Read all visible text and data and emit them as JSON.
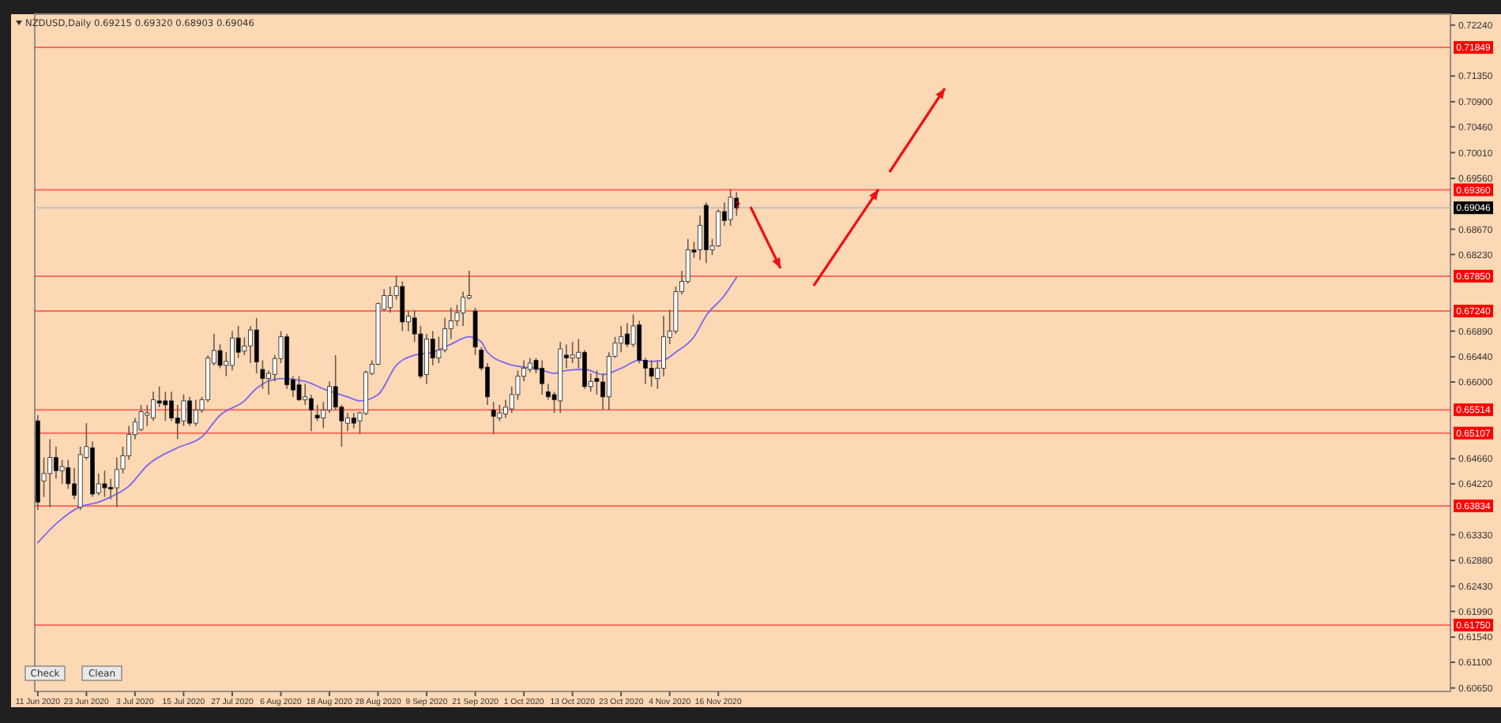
{
  "chart_data": {
    "type": "candlestick",
    "title": "NZDUSD,Daily  0.69215 0.69320 0.68903 0.69046",
    "categories": [
      "11 Jun 2020",
      null,
      null,
      null,
      null,
      null,
      null,
      null,
      "23 Jun 2020",
      null,
      null,
      null,
      null,
      null,
      null,
      null,
      "3 Jul 2020",
      null,
      null,
      null,
      null,
      null,
      null,
      null,
      "15 Jul 2020",
      null,
      null,
      null,
      null,
      null,
      null,
      null,
      "27 Jul 2020",
      null,
      null,
      null,
      null,
      null,
      null,
      null,
      "6 Aug 2020",
      null,
      null,
      null,
      null,
      null,
      null,
      null,
      "18 Aug 2020",
      null,
      null,
      null,
      null,
      null,
      null,
      null,
      "28 Aug 2020",
      null,
      null,
      null,
      null,
      null,
      null,
      null,
      "9 Sep 2020",
      null,
      null,
      null,
      null,
      null,
      null,
      null,
      "21 Sep 2020",
      null,
      null,
      null,
      null,
      null,
      null,
      null,
      "1 Oct 2020",
      null,
      null,
      null,
      null,
      null,
      null,
      null,
      "13 Oct 2020",
      null,
      null,
      null,
      null,
      null,
      null,
      null,
      "23 Oct 2020",
      null,
      null,
      null,
      null,
      null,
      null,
      null,
      "4 Nov 2020",
      null,
      null,
      null,
      null,
      null,
      null,
      null,
      "16 Nov 2020",
      null,
      null,
      null,
      null,
      null,
      null,
      null,
      null,
      null,
      null,
      null,
      null,
      null,
      null,
      null,
      null,
      null,
      null,
      null,
      null,
      null,
      null,
      null,
      null,
      null,
      null,
      null,
      null,
      null,
      null,
      null,
      null,
      null,
      null,
      null,
      null,
      null,
      null,
      null,
      null,
      null,
      null,
      null,
      null,
      null,
      null,
      null,
      null,
      null,
      null,
      null,
      null,
      null,
      null,
      null,
      null,
      null,
      null,
      null,
      null,
      null,
      null,
      null,
      null,
      null,
      null,
      null,
      null,
      null,
      null,
      null,
      null,
      null,
      null,
      null,
      null,
      null,
      null,
      null,
      null,
      null,
      null,
      null,
      null,
      null,
      null,
      null,
      null,
      null,
      null,
      null,
      null,
      null,
      null,
      null,
      null,
      null,
      null,
      null,
      null,
      null,
      null,
      null,
      null,
      null,
      null,
      null,
      null,
      null,
      null,
      null,
      null,
      null,
      null,
      null,
      null,
      null,
      null,
      null,
      null
    ],
    "ohlc": [
      [
        0.6532,
        0.6542,
        0.6376,
        0.639
      ],
      [
        0.6427,
        0.6468,
        0.6399,
        0.644
      ],
      [
        0.644,
        0.65,
        0.6381,
        0.6468
      ],
      [
        0.6468,
        0.6487,
        0.6431,
        0.6445
      ],
      [
        0.6445,
        0.6464,
        0.6422,
        0.6452
      ],
      [
        0.645,
        0.6464,
        0.6413,
        0.6422
      ],
      [
        0.6422,
        0.645,
        0.6395,
        0.6402
      ],
      [
        0.6381,
        0.6487,
        0.6376,
        0.6473
      ],
      [
        0.6468,
        0.6528,
        0.6464,
        0.6487
      ],
      [
        0.6485,
        0.6496,
        0.6399,
        0.6404
      ],
      [
        0.6406,
        0.644,
        0.6402,
        0.6422
      ],
      [
        0.6422,
        0.6445,
        0.6399,
        0.6415
      ],
      [
        0.6416,
        0.6431,
        0.6395,
        0.6413
      ],
      [
        0.6415,
        0.6468,
        0.6381,
        0.6447
      ],
      [
        0.6448,
        0.6487,
        0.644,
        0.6471
      ],
      [
        0.6471,
        0.6523,
        0.6464,
        0.6508
      ],
      [
        0.6508,
        0.6537,
        0.65,
        0.653
      ],
      [
        0.6517,
        0.656,
        0.6514,
        0.6548
      ],
      [
        0.6542,
        0.656,
        0.6523,
        0.6546
      ],
      [
        0.6537,
        0.6583,
        0.6532,
        0.6569
      ],
      [
        0.6567,
        0.6592,
        0.6556,
        0.6563
      ],
      [
        0.6567,
        0.6583,
        0.6532,
        0.656
      ],
      [
        0.6567,
        0.6583,
        0.6532,
        0.6537
      ],
      [
        0.6537,
        0.656,
        0.65,
        0.6528
      ],
      [
        0.6532,
        0.6578,
        0.6523,
        0.6567
      ],
      [
        0.6567,
        0.6574,
        0.6523,
        0.6528
      ],
      [
        0.6528,
        0.6569,
        0.6523,
        0.6551
      ],
      [
        0.6551,
        0.6574,
        0.6546,
        0.6569
      ],
      [
        0.6569,
        0.6647,
        0.6565,
        0.6642
      ],
      [
        0.6633,
        0.6684,
        0.6629,
        0.6655
      ],
      [
        0.6655,
        0.6666,
        0.6624,
        0.6629
      ],
      [
        0.6629,
        0.6652,
        0.661,
        0.6636
      ],
      [
        0.6629,
        0.6689,
        0.662,
        0.6677
      ],
      [
        0.6677,
        0.6698,
        0.6642,
        0.6652
      ],
      [
        0.6654,
        0.6678,
        0.6647,
        0.6663
      ],
      [
        0.6663,
        0.6698,
        0.6633,
        0.6691
      ],
      [
        0.6691,
        0.6712,
        0.6615,
        0.6635
      ],
      [
        0.6622,
        0.6638,
        0.6588,
        0.6606
      ],
      [
        0.6606,
        0.662,
        0.6578,
        0.6615
      ],
      [
        0.6613,
        0.6647,
        0.6601,
        0.6641
      ],
      [
        0.6641,
        0.6689,
        0.6633,
        0.6679
      ],
      [
        0.6679,
        0.6684,
        0.6588,
        0.6595
      ],
      [
        0.6604,
        0.661,
        0.6574,
        0.6586
      ],
      [
        0.6595,
        0.661,
        0.6567,
        0.6569
      ],
      [
        0.6569,
        0.6597,
        0.656,
        0.6574
      ],
      [
        0.6571,
        0.6578,
        0.6514,
        0.6551
      ],
      [
        0.6542,
        0.656,
        0.6532,
        0.6537
      ],
      [
        0.6537,
        0.6565,
        0.6519,
        0.6551
      ],
      [
        0.6551,
        0.6601,
        0.6546,
        0.6592
      ],
      [
        0.6592,
        0.6647,
        0.6551,
        0.6556
      ],
      [
        0.6556,
        0.656,
        0.6487,
        0.6532
      ],
      [
        0.6528,
        0.6546,
        0.6514,
        0.6537
      ],
      [
        0.6537,
        0.6546,
        0.6519,
        0.6528
      ],
      [
        0.6532,
        0.6548,
        0.6509,
        0.6546
      ],
      [
        0.6545,
        0.662,
        0.6542,
        0.6617
      ],
      [
        0.6615,
        0.6638,
        0.6612,
        0.6631
      ],
      [
        0.6631,
        0.6739,
        0.6629,
        0.6737
      ],
      [
        0.6727,
        0.6762,
        0.6724,
        0.6751
      ],
      [
        0.673,
        0.6767,
        0.6721,
        0.6751
      ],
      [
        0.6751,
        0.6785,
        0.6744,
        0.6767
      ],
      [
        0.6767,
        0.6776,
        0.6689,
        0.6705
      ],
      [
        0.6705,
        0.6724,
        0.6689,
        0.6715
      ],
      [
        0.6712,
        0.6726,
        0.667,
        0.6684
      ],
      [
        0.6684,
        0.6698,
        0.6606,
        0.661
      ],
      [
        0.6613,
        0.6684,
        0.6597,
        0.6675
      ],
      [
        0.6675,
        0.6689,
        0.6629,
        0.6642
      ],
      [
        0.6642,
        0.6679,
        0.6633,
        0.6656
      ],
      [
        0.6656,
        0.6712,
        0.6652,
        0.6693
      ],
      [
        0.6693,
        0.673,
        0.6675,
        0.6707
      ],
      [
        0.6707,
        0.6735,
        0.6698,
        0.6721
      ],
      [
        0.6721,
        0.6758,
        0.6698,
        0.6748
      ],
      [
        0.6747,
        0.6794,
        0.6744,
        0.6751
      ],
      [
        0.6724,
        0.673,
        0.6647,
        0.6661
      ],
      [
        0.6656,
        0.6661,
        0.662,
        0.6624
      ],
      [
        0.6626,
        0.6633,
        0.656,
        0.6574
      ],
      [
        0.6551,
        0.6565,
        0.6509,
        0.654
      ],
      [
        0.6537,
        0.656,
        0.6532,
        0.6546
      ],
      [
        0.6544,
        0.6569,
        0.6537,
        0.6556
      ],
      [
        0.6553,
        0.6592,
        0.6546,
        0.6578
      ],
      [
        0.6578,
        0.662,
        0.6569,
        0.661
      ],
      [
        0.661,
        0.6638,
        0.6601,
        0.6624
      ],
      [
        0.6622,
        0.6642,
        0.6617,
        0.6633
      ],
      [
        0.6638,
        0.6642,
        0.6615,
        0.6622
      ],
      [
        0.6624,
        0.6638,
        0.6578,
        0.6597
      ],
      [
        0.6583,
        0.6597,
        0.6569,
        0.6574
      ],
      [
        0.6578,
        0.6583,
        0.6546,
        0.6569
      ],
      [
        0.6567,
        0.667,
        0.6546,
        0.6658
      ],
      [
        0.6647,
        0.6666,
        0.6624,
        0.6642
      ],
      [
        0.6642,
        0.667,
        0.6633,
        0.6647
      ],
      [
        0.6642,
        0.6675,
        0.6624,
        0.6652
      ],
      [
        0.6652,
        0.6656,
        0.6588,
        0.6592
      ],
      [
        0.6592,
        0.6615,
        0.6583,
        0.6601
      ],
      [
        0.6606,
        0.662,
        0.6578,
        0.6601
      ],
      [
        0.66,
        0.6615,
        0.6551,
        0.6574
      ],
      [
        0.6574,
        0.6652,
        0.6551,
        0.6645
      ],
      [
        0.6645,
        0.6679,
        0.6642,
        0.6668
      ],
      [
        0.6668,
        0.6698,
        0.6652,
        0.6679
      ],
      [
        0.6684,
        0.6703,
        0.6661,
        0.6666
      ],
      [
        0.6666,
        0.6718,
        0.6661,
        0.6698
      ],
      [
        0.67,
        0.6707,
        0.6633,
        0.6638
      ],
      [
        0.6638,
        0.6642,
        0.6597,
        0.6624
      ],
      [
        0.6624,
        0.6638,
        0.6592,
        0.661
      ],
      [
        0.6606,
        0.6638,
        0.6588,
        0.6624
      ],
      [
        0.6624,
        0.6716,
        0.661,
        0.6679
      ],
      [
        0.6678,
        0.6726,
        0.6666,
        0.6689
      ],
      [
        0.6689,
        0.6767,
        0.6684,
        0.6758
      ],
      [
        0.6758,
        0.6794,
        0.6753,
        0.6776
      ],
      [
        0.6776,
        0.685,
        0.6772,
        0.6831
      ],
      [
        0.6831,
        0.6845,
        0.6817,
        0.6827
      ],
      [
        0.6831,
        0.6891,
        0.6813,
        0.6874
      ],
      [
        0.6909,
        0.6914,
        0.6808,
        0.6831
      ],
      [
        0.6831,
        0.685,
        0.6822,
        0.6838
      ],
      [
        0.6838,
        0.6902,
        0.6836,
        0.6898
      ],
      [
        0.6898,
        0.6914,
        0.6873,
        0.6882
      ],
      [
        0.6884,
        0.6937,
        0.6873,
        0.6923
      ],
      [
        0.69215,
        0.6932,
        0.68903,
        0.69046
      ],
      null,
      null,
      null,
      null,
      null,
      null,
      null,
      null,
      null,
      null,
      null,
      null,
      null,
      null,
      null,
      null,
      null,
      null,
      null,
      null,
      null,
      null,
      null,
      null,
      null,
      null,
      null,
      null,
      null,
      null,
      null,
      null,
      null,
      null,
      null,
      null,
      null,
      null,
      null,
      null,
      null,
      null,
      null,
      null,
      null,
      null,
      null,
      null,
      null,
      null,
      null,
      null,
      null,
      null,
      null,
      null,
      null,
      null,
      null,
      null,
      null,
      null,
      null,
      null,
      null,
      null,
      null,
      null,
      null,
      null,
      null,
      null,
      null,
      null,
      null,
      null,
      null,
      null,
      null,
      null,
      null,
      null,
      null,
      null,
      null,
      null,
      null,
      null,
      null,
      null,
      null,
      null,
      null,
      null,
      null,
      null,
      null,
      null,
      null,
      null,
      null,
      null,
      null,
      null,
      null,
      null,
      null,
      null,
      null,
      null,
      null,
      null,
      null,
      null,
      null,
      null,
      null
    ],
    "series": [
      {
        "type": "line",
        "color": "#7b68ee",
        "values": [
          0.6319,
          null,
          null,
          0.6352,
          null,
          null,
          null,
          0.6382,
          null,
          null,
          0.639,
          null,
          0.6399,
          null,
          null,
          0.6418,
          null,
          null,
          0.6454,
          null,
          null,
          null,
          null,
          0.6485,
          null,
          null,
          null,
          0.6504,
          null,
          null,
          0.6542,
          null,
          null,
          null,
          0.6567,
          null,
          0.6589,
          null,
          null,
          null,
          0.6606,
          null,
          null,
          null,
          0.6601,
          null,
          null,
          0.6588,
          null,
          null,
          null,
          0.6574,
          null,
          0.6567,
          null,
          null,
          0.6578,
          null,
          null,
          0.6629,
          null,
          null,
          0.6647,
          null,
          null,
          0.6652,
          null,
          null,
          0.6666,
          null,
          null,
          0.6679,
          null,
          0.667,
          0.6652,
          null,
          null,
          0.6633,
          null,
          null,
          0.6626,
          null,
          0.6624,
          null,
          null,
          0.6615,
          null,
          0.662,
          null,
          null,
          0.6622,
          null,
          null,
          0.6613,
          null,
          null,
          0.6624,
          null,
          null,
          0.6638,
          null,
          0.6636,
          null,
          0.6638,
          null,
          0.6652,
          null,
          null,
          0.6679,
          null,
          0.6716,
          null,
          null,
          0.6751,
          null,
          0.6783,
          null,
          null,
          null,
          null,
          null,
          null,
          null,
          null,
          null,
          null,
          null,
          null,
          null,
          null,
          null,
          null,
          null,
          null,
          null,
          null,
          null,
          null,
          null,
          null,
          null,
          null,
          null,
          null,
          null,
          null,
          null,
          null,
          null,
          null,
          null,
          null,
          null,
          null,
          null,
          null,
          null,
          null,
          null,
          null,
          null,
          null,
          null,
          null,
          null,
          null,
          null,
          null,
          null,
          null,
          null,
          null,
          null,
          null,
          null,
          null,
          null,
          null,
          null,
          null,
          null,
          null,
          null,
          null,
          null,
          null,
          null,
          null,
          null,
          null,
          null,
          null,
          null,
          null,
          null,
          null,
          null,
          null,
          null,
          null,
          null,
          null,
          null,
          null,
          null,
          null,
          null,
          null,
          null,
          null,
          null,
          null,
          null,
          null,
          null,
          null,
          null,
          null,
          null,
          null,
          null,
          null,
          null,
          null,
          null,
          null,
          null,
          null,
          null,
          null,
          null,
          null,
          null
        ]
      }
    ],
    "ylim": [
      0.6059,
      0.7243
    ],
    "yticks": [
      {
        "value": 0.7224,
        "label": "0.72240"
      },
      {
        "value": 0.7135,
        "label": "0.71350"
      },
      {
        "value": 0.709,
        "label": "0.70900"
      },
      {
        "value": 0.7046,
        "label": "0.70460"
      },
      {
        "value": 0.7001,
        "label": "0.70010"
      },
      {
        "value": 0.6956,
        "label": "0.69560"
      },
      {
        "value": 0.6867,
        "label": "0.68670"
      },
      {
        "value": 0.6823,
        "label": "0.68230"
      },
      {
        "value": 0.6689,
        "label": "0.66890"
      },
      {
        "value": 0.6644,
        "label": "0.66440"
      },
      {
        "value": 0.66,
        "label": "0.66000"
      },
      {
        "value": 0.6466,
        "label": "0.64660"
      },
      {
        "value": 0.6422,
        "label": "0.64220"
      },
      {
        "value": 0.6333,
        "label": "0.63330"
      },
      {
        "value": 0.6288,
        "label": "0.62880"
      },
      {
        "value": 0.6243,
        "label": "0.62430"
      },
      {
        "value": 0.6199,
        "label": "0.61990"
      },
      {
        "value": 0.6154,
        "label": "0.61540"
      },
      {
        "value": 0.611,
        "label": "0.61100"
      },
      {
        "value": 0.6065,
        "label": "0.60650"
      }
    ],
    "ref_lines": [
      {
        "axis": "y",
        "value": 0.71849,
        "label": "0.71849",
        "color": "#ff0000"
      },
      {
        "axis": "y",
        "value": 0.6936,
        "label": "0.69360",
        "color": "#ff0000"
      },
      {
        "axis": "y",
        "value": 0.69046,
        "label": "0.69046",
        "color": "#c0c0c0"
      },
      {
        "axis": "y",
        "value": 0.6785,
        "label": "0.67850",
        "color": "#ff0000"
      },
      {
        "axis": "y",
        "value": 0.6724,
        "label": "0.67240",
        "color": "#ff0000"
      },
      {
        "axis": "y",
        "value": 0.65514,
        "label": "0.65514",
        "color": "#ff0000"
      },
      {
        "axis": "y",
        "value": 0.65107,
        "label": "0.65107",
        "color": "#ff0000"
      },
      {
        "axis": "y",
        "value": 0.63834,
        "label": "0.63834",
        "color": "#ff0000"
      },
      {
        "axis": "y",
        "value": 0.6175,
        "label": "0.61750",
        "color": "#ff0000"
      }
    ],
    "annotations": [
      "?",
      "Check",
      "Clean"
    ],
    "grid": false
  }
}
